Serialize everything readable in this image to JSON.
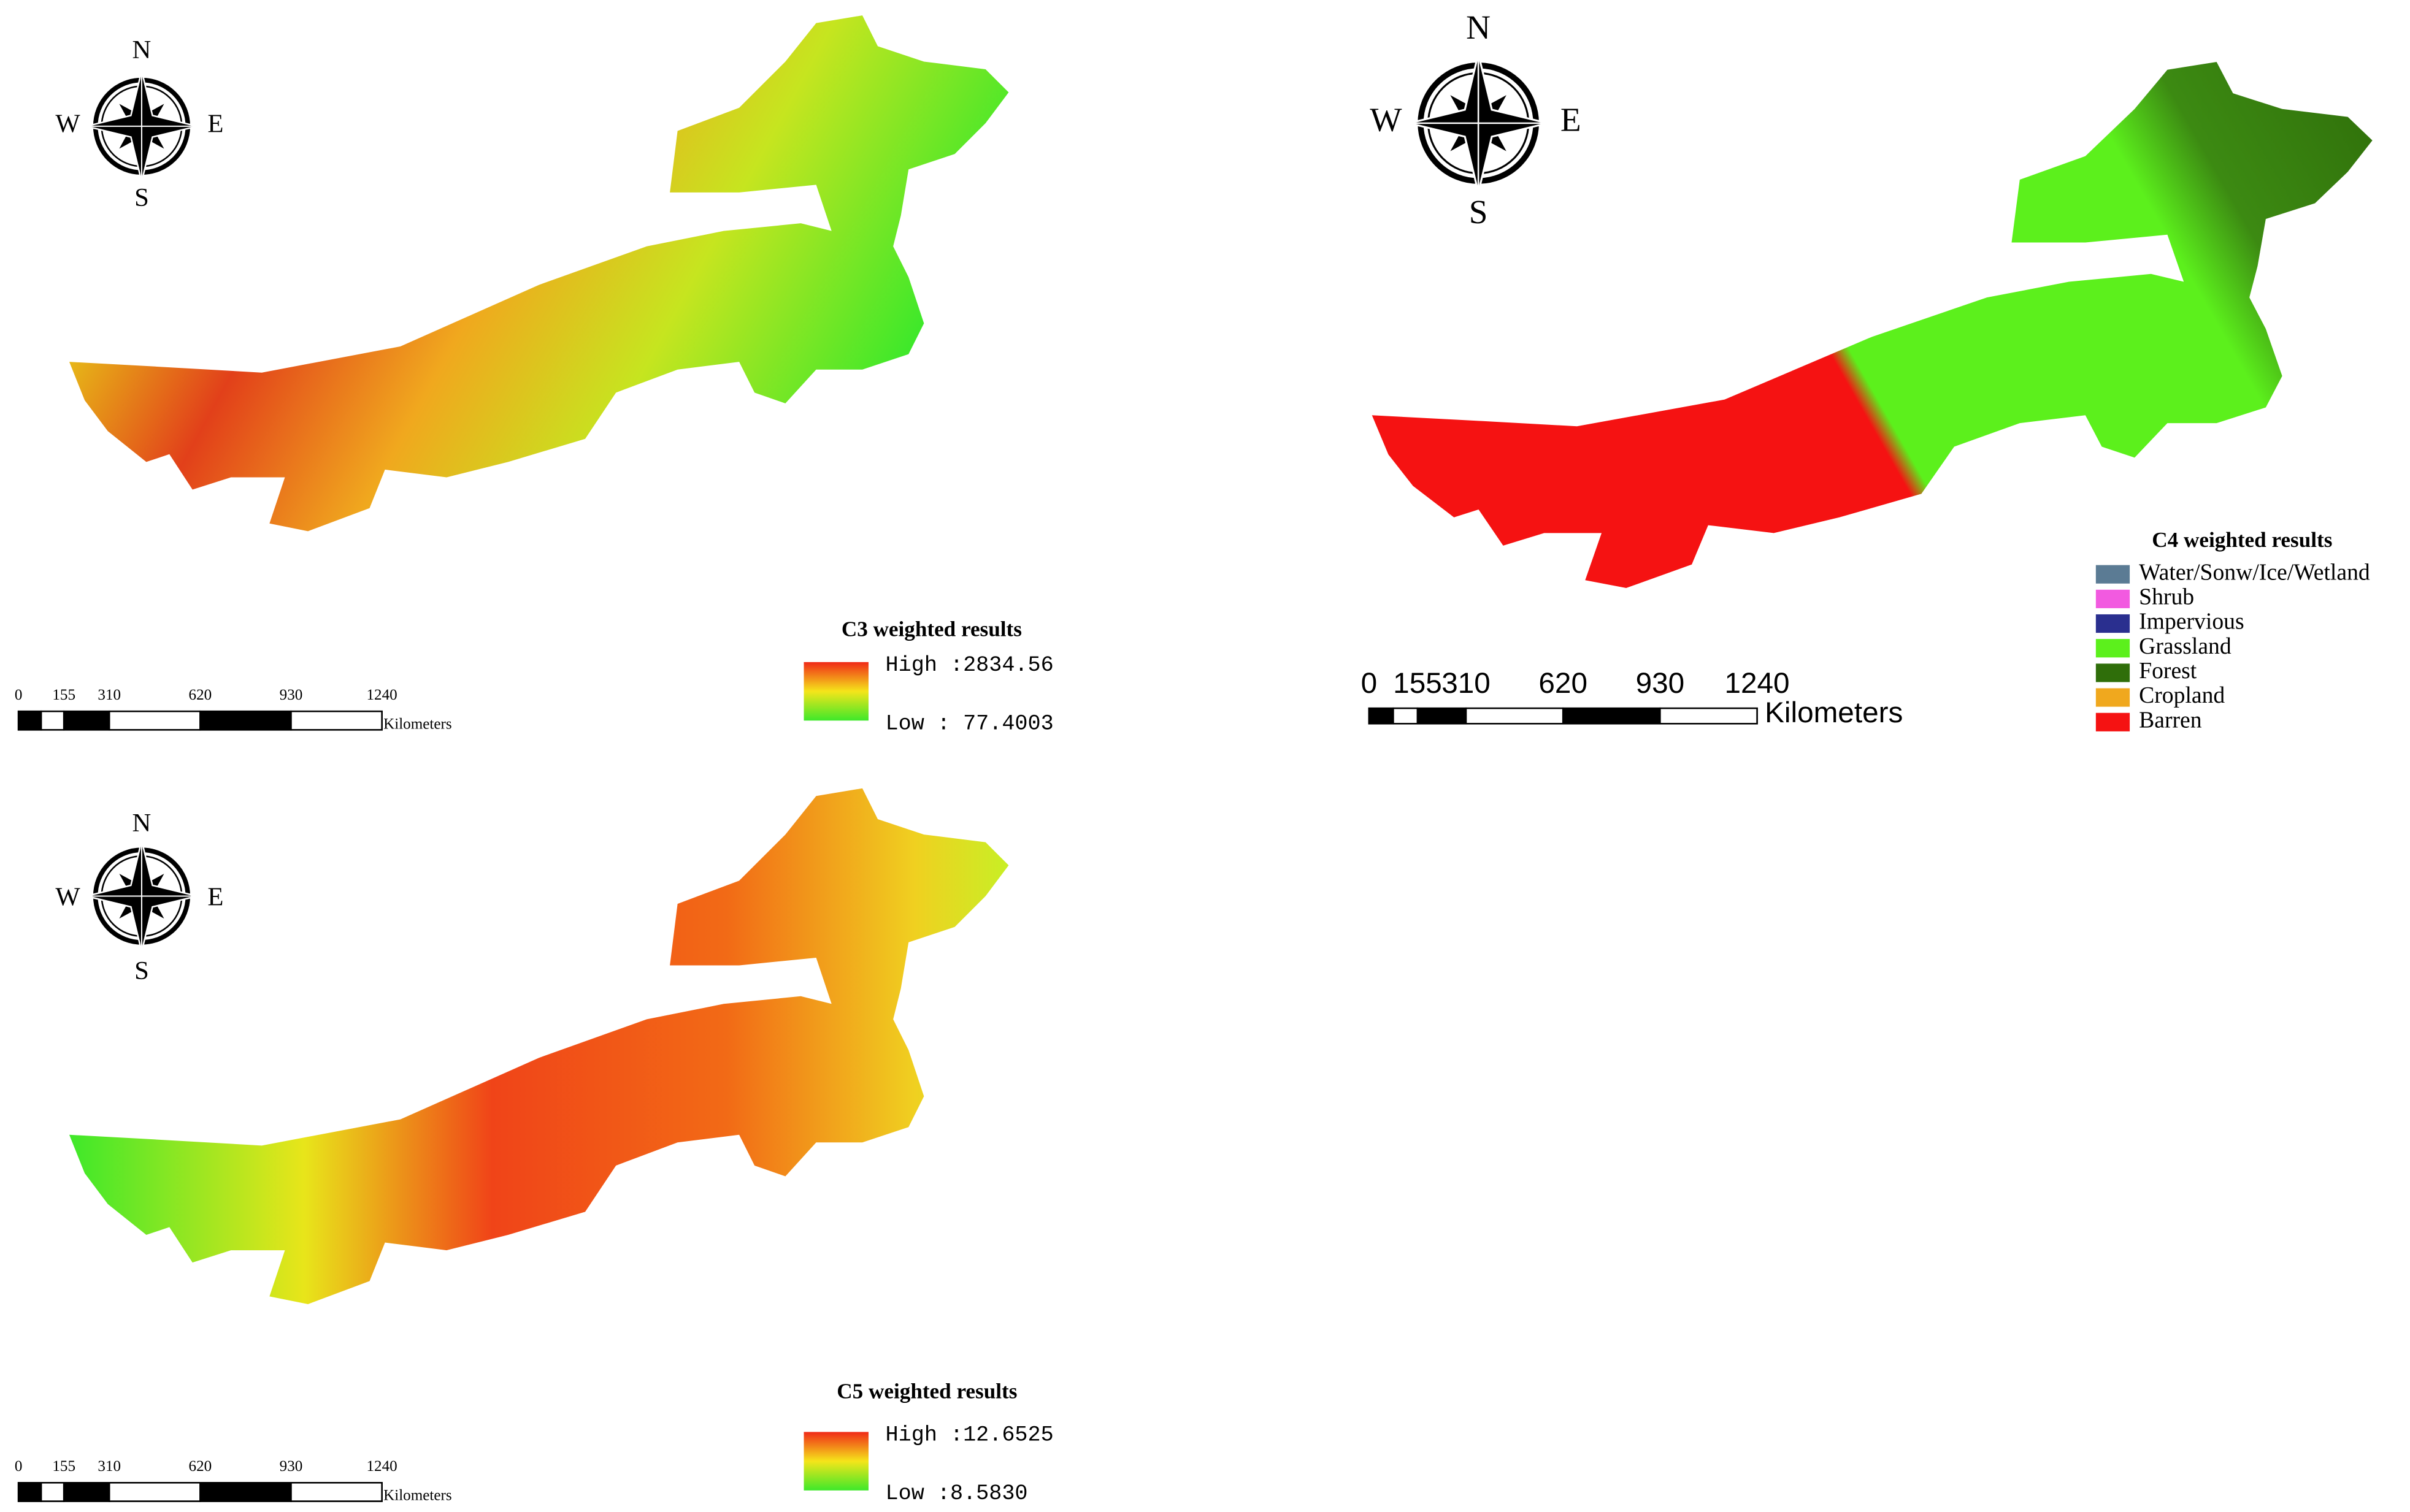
{
  "panels": [
    {
      "compass": {
        "n": "N",
        "s": "S",
        "w": "W",
        "e": "E"
      },
      "legend": {
        "title": "C3 weighted results",
        "high": "High :2834.56",
        "low": "Low : 77.4003"
      },
      "scale_bar": {
        "labels": [
          0,
          155,
          310,
          620,
          930,
          1240
        ],
        "unit": "Kilometers"
      }
    },
    {
      "compass": {
        "n": "N",
        "s": "S",
        "w": "W",
        "e": "E"
      },
      "legend": {
        "title": "C4 weighted results",
        "items": [
          {
            "label": "Water/Sonw/Ice/Wetland",
            "color": "#5b7b94"
          },
          {
            "label": "Shrub",
            "color": "#f25ae0"
          },
          {
            "label": "Impervious",
            "color": "#2a2f8f"
          },
          {
            "label": "Grassland",
            "color": "#5cf01c"
          },
          {
            "label": "Forest",
            "color": "#2f6e0a"
          },
          {
            "label": "Cropland",
            "color": "#f0a81e"
          },
          {
            "label": "Barren",
            "color": "#f51212"
          }
        ]
      },
      "scale_bar": {
        "labels": [
          0,
          155,
          310,
          620,
          930,
          1240
        ],
        "unit": "Kilometers"
      }
    },
    {
      "compass": {
        "n": "N",
        "s": "S",
        "w": "W",
        "e": "E"
      },
      "legend": {
        "title": "C5 weighted results",
        "high": "High :12.6525",
        "low": "Low :8.5830"
      },
      "scale_bar": {
        "labels": [
          0,
          155,
          310,
          620,
          930,
          1240
        ],
        "unit": "Kilometers"
      }
    }
  ]
}
